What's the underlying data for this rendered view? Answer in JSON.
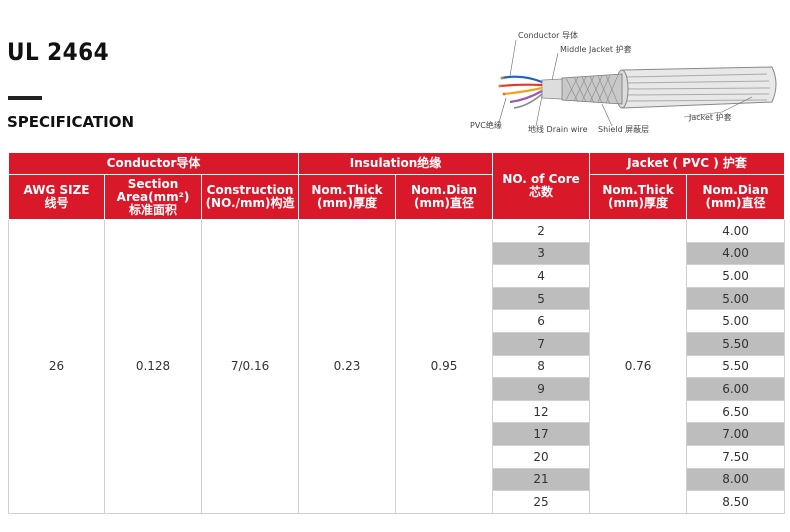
{
  "header": {
    "title": "UL 2464",
    "subtitle": "SPECIFICATION"
  },
  "diagram": {
    "labels": {
      "conductor": "Conductor 导体",
      "middle_jacket": "Middle Jacket 护套",
      "pvc": "PVC绝缘",
      "drain_wire": "地线 Drain wire",
      "shield": "Shield 屏蔽层",
      "jacket": "Jacket 护套"
    }
  },
  "table": {
    "groups": {
      "conductor": "Conductor导体",
      "insulation": "Insulation绝缘",
      "core": "NO. of Core\n芯数",
      "jacket": "Jacket ( PVC ) 护套"
    },
    "subheaders": {
      "awg": "AWG SIZE\n线号",
      "section": "Section\nArea(mm²)\n标准面积",
      "construction": "Construction\n(NO./mm)构造",
      "ins_thick": "Nom.Thick\n(mm)厚度",
      "ins_dian": "Nom.Dian\n(mm)直径",
      "jk_thick": "Nom.Thick\n(mm)厚度",
      "jk_dian": "Nom.Dian\n(mm)直径"
    },
    "fixed": {
      "awg": "26",
      "section": "0.128",
      "construction": "7/0.16",
      "ins_thick": "0.23",
      "ins_dian": "0.95",
      "jk_thick": "0.76"
    },
    "cores": [
      "2",
      "3",
      "4",
      "5",
      "6",
      "7",
      "8",
      "9",
      "12",
      "17",
      "20",
      "21",
      "25"
    ],
    "diameters": [
      "4.00",
      "4.00",
      "5.00",
      "5.00",
      "5.00",
      "5.50",
      "5.50",
      "6.00",
      "6.50",
      "7.00",
      "7.50",
      "8.00",
      "8.50"
    ],
    "shade_color": "#bdbdbd",
    "header_color": "#d9192a"
  }
}
